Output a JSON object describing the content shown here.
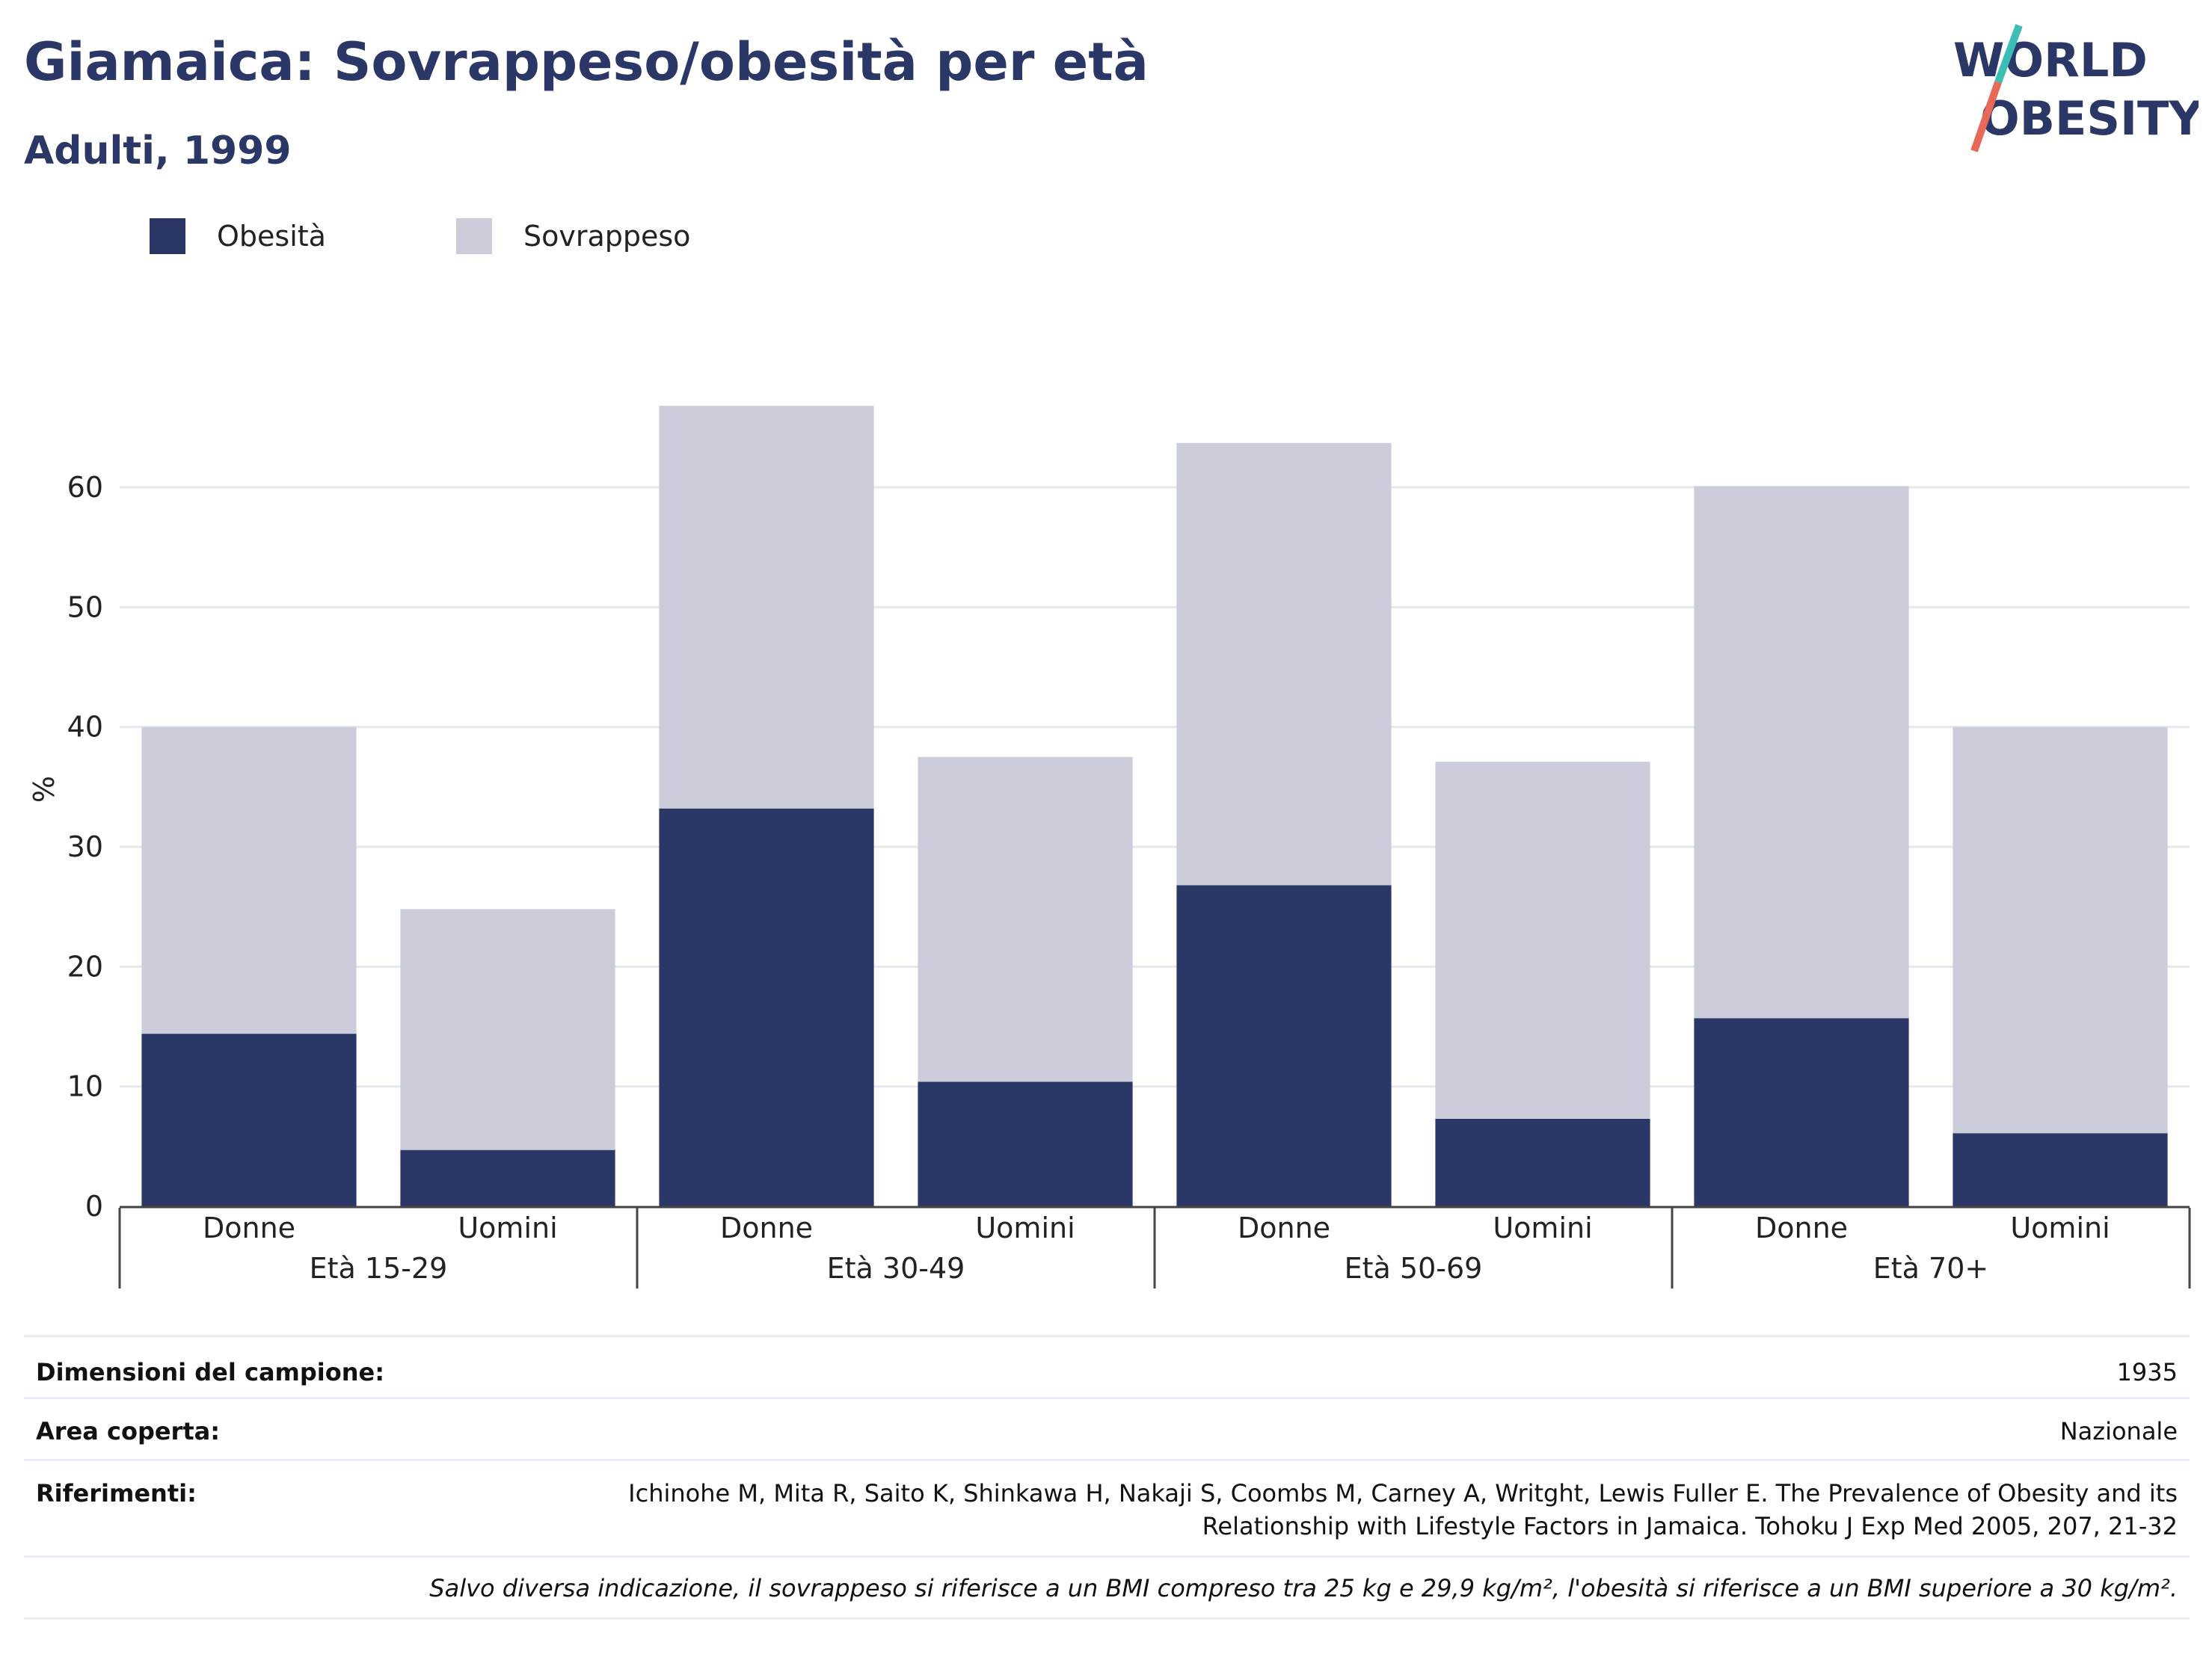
{
  "header": {
    "title": "Giamaica: Sovrappeso/obesità per età",
    "subtitle": "Adulti, 1999"
  },
  "logo": {
    "line1": "WORLD",
    "line2": "OBESITY",
    "accent_teal": "#3bbfb4",
    "accent_coral": "#e8685a"
  },
  "legend": [
    {
      "label": "Obesità",
      "color": "#2b3766"
    },
    {
      "label": "Sovrappeso",
      "color": "#cbcdda"
    }
  ],
  "chart_data": {
    "type": "bar",
    "stacked": true,
    "ylabel": "%",
    "ylim": [
      0,
      70
    ],
    "yticks": [
      0,
      10,
      20,
      30,
      40,
      50,
      60
    ],
    "grid": true,
    "legend_position": "top-left",
    "groups": [
      "Età 15-29",
      "Età 30-49",
      "Età 50-69",
      "Età 70+"
    ],
    "categories": [
      "Donne",
      "Uomini",
      "Donne",
      "Uomini",
      "Donne",
      "Uomini",
      "Donne",
      "Uomini"
    ],
    "series": [
      {
        "name": "Obesità",
        "color": "#2b3766",
        "values": [
          14.4,
          4.7,
          33.2,
          10.4,
          26.8,
          7.3,
          15.7,
          6.1
        ]
      },
      {
        "name": "Sovrappeso",
        "color": "#cbcdda",
        "values": [
          25.6,
          20.1,
          33.6,
          27.1,
          36.9,
          29.8,
          44.4,
          33.9
        ]
      }
    ]
  },
  "info": {
    "sample_label": "Dimensioni del campione:",
    "sample_value": "1935",
    "area_label": "Area coperta:",
    "area_value": "Nazionale",
    "ref_label": "Riferimenti:",
    "ref_line1": "Ichinohe M, Mita R, Saito K, Shinkawa H, Nakaji S, Coombs M, Carney A, Writght, Lewis Fuller E. The Prevalence of Obesity and its",
    "ref_line2": "Relationship with Lifestyle Factors in Jamaica. Tohoku J Exp Med 2005, 207, 21-32",
    "note": "Salvo diversa indicazione, il sovrappeso si riferisce a un BMI compreso tra 25 kg e 29,9 kg/m², l'obesità si riferisce a un BMI superiore a 30 kg/m²."
  }
}
